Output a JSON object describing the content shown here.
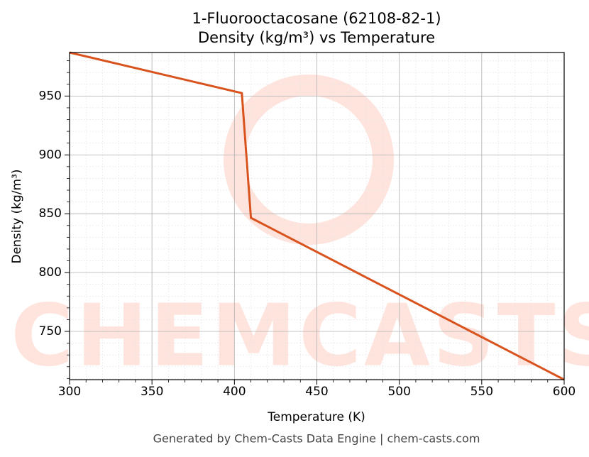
{
  "chart_data": {
    "type": "line",
    "title": "1-Fluorooctacosane (62108-82-1)",
    "subtitle": "Density (kg/m³) vs Temperature",
    "x_label": "Temperature (K)",
    "y_label": "Density (kg/m³)",
    "footer": "Generated by Chem-Casts Data Engine | chem-casts.com",
    "watermark": "CHEMCASTS",
    "x": [
      300,
      404.5,
      410,
      600
    ],
    "series": [
      {
        "name": "Density",
        "color": "#d9531e",
        "values": [
          987,
          952.5,
          846.5,
          709
        ]
      }
    ],
    "xlim": [
      300,
      600
    ],
    "ylim": [
      709,
      987
    ],
    "xticks": [
      300,
      350,
      400,
      450,
      500,
      550,
      600
    ],
    "yticks": [
      750,
      800,
      850,
      900,
      950
    ],
    "xminor": [
      310,
      320,
      330,
      340,
      360,
      370,
      380,
      390,
      410,
      420,
      430,
      440,
      460,
      470,
      480,
      490,
      510,
      520,
      530,
      540,
      560,
      570,
      580,
      590
    ],
    "yminor": [
      710,
      720,
      730,
      740,
      760,
      770,
      780,
      790,
      810,
      820,
      830,
      840,
      860,
      870,
      880,
      890,
      910,
      920,
      930,
      940,
      960,
      970,
      980
    ],
    "grid": true
  }
}
